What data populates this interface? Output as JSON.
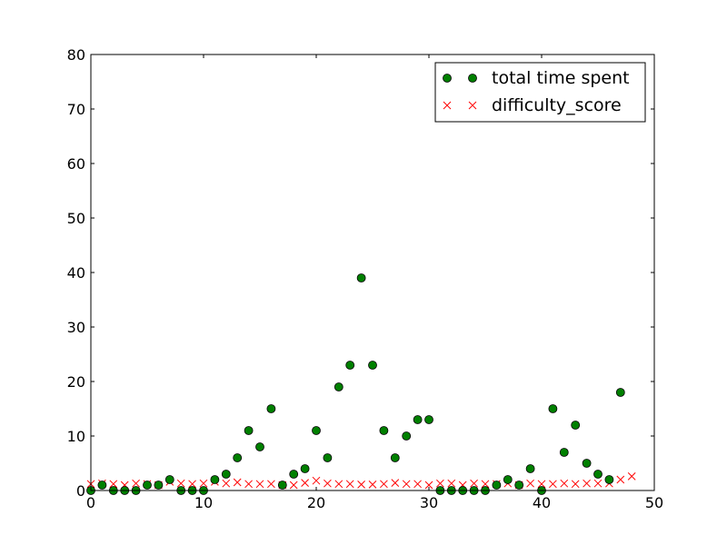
{
  "chart_data": {
    "type": "scatter",
    "xlim": [
      0,
      50
    ],
    "ylim": [
      0,
      80
    ],
    "x_ticks": [
      0,
      10,
      20,
      30,
      40,
      50
    ],
    "y_ticks": [
      0,
      10,
      20,
      30,
      40,
      50,
      60,
      70,
      80
    ],
    "grid": false,
    "legend_position": "top-right",
    "series": [
      {
        "name": "total time spent",
        "marker": "circle",
        "color": "#008000",
        "x": [
          0,
          1,
          2,
          3,
          4,
          5,
          6,
          7,
          8,
          9,
          10,
          11,
          12,
          13,
          14,
          15,
          16,
          17,
          18,
          19,
          20,
          21,
          22,
          23,
          24,
          25,
          26,
          27,
          28,
          29,
          30,
          31,
          32,
          33,
          34,
          35,
          36,
          37,
          38,
          39,
          40,
          41,
          42,
          43,
          44,
          45,
          46,
          47
        ],
        "y": [
          0,
          1,
          0,
          0,
          0,
          1,
          1,
          2,
          0,
          0,
          0,
          2,
          3,
          6,
          11,
          8,
          15,
          1,
          3,
          4,
          11,
          6,
          19,
          23,
          39,
          23,
          11,
          6,
          10,
          13,
          13,
          0,
          0,
          0,
          0,
          0,
          1,
          2,
          1,
          4,
          0,
          15,
          7,
          12,
          5,
          3,
          2,
          18
        ]
      },
      {
        "name": "difficulty_score",
        "marker": "x",
        "color": "#ff0000",
        "x": [
          0,
          1,
          2,
          3,
          4,
          5,
          6,
          7,
          8,
          9,
          10,
          11,
          12,
          13,
          14,
          15,
          16,
          17,
          18,
          19,
          20,
          21,
          22,
          23,
          24,
          25,
          26,
          27,
          28,
          29,
          30,
          31,
          32,
          33,
          34,
          35,
          36,
          37,
          38,
          39,
          40,
          41,
          42,
          43,
          44,
          45,
          46,
          47,
          48
        ],
        "y": [
          1.2,
          1.3,
          1.2,
          1.0,
          1.3,
          1.2,
          1.0,
          1.6,
          1.3,
          1.2,
          1.3,
          1.6,
          1.3,
          1.5,
          1.2,
          1.2,
          1.2,
          1.0,
          1.0,
          1.4,
          1.8,
          1.3,
          1.2,
          1.2,
          1.1,
          1.1,
          1.2,
          1.4,
          1.2,
          1.2,
          1.0,
          1.3,
          1.3,
          1.0,
          1.3,
          1.2,
          1.2,
          1.3,
          1.0,
          1.3,
          1.2,
          1.2,
          1.3,
          1.2,
          1.3,
          1.3,
          1.3,
          2.0,
          2.6
        ]
      }
    ]
  }
}
